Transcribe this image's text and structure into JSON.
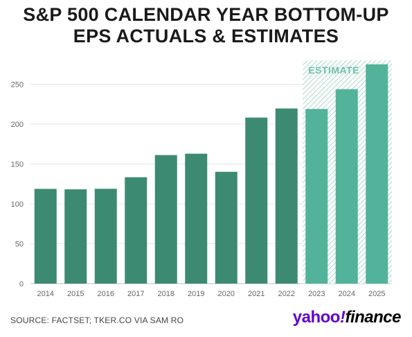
{
  "title": "S&P 500 CALENDAR YEAR BOTTOM-UP\nEPS ACTUALS & ESTIMATES",
  "source": "SOURCE: FACTSET; TKER.CO VIA SAM RO",
  "logo": {
    "part1": "yahoo",
    "part2": "!",
    "part3": "finance"
  },
  "estimate_label": "ESTIMATE",
  "colors": {
    "actual": "#3d8a73",
    "estimate": "#52b39a",
    "estimate_band": "#cfeae2",
    "grid": "#e6e6e6",
    "text": "#666666"
  },
  "chart_data": {
    "type": "bar",
    "categories": [
      "2014",
      "2015",
      "2016",
      "2017",
      "2018",
      "2019",
      "2020",
      "2021",
      "2022",
      "2023",
      "2024",
      "2025"
    ],
    "values": [
      118.8,
      118.2,
      118.9,
      133.4,
      161.2,
      162.9,
      140.2,
      208.2,
      219.6,
      219.0,
      243.8,
      275.0
    ],
    "estimate_flags": [
      false,
      false,
      false,
      false,
      false,
      false,
      false,
      false,
      false,
      true,
      true,
      true
    ],
    "ylim": [
      0,
      280
    ],
    "yticks": [
      0,
      50,
      100,
      150,
      200,
      250
    ],
    "grid": true,
    "annotation": "ESTIMATE"
  }
}
